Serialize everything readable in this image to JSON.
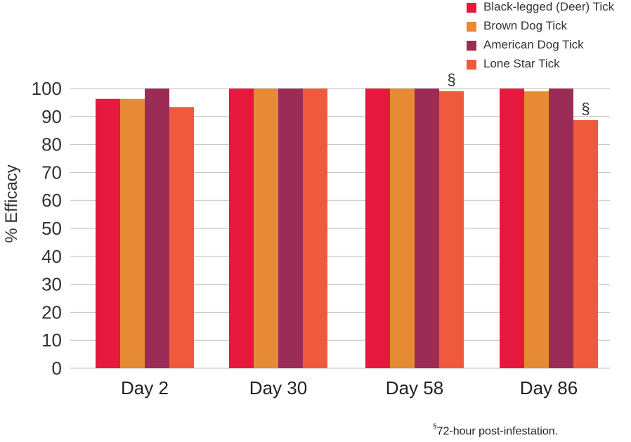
{
  "chart_data": {
    "type": "bar",
    "categories": [
      "Day 2",
      "Day 30",
      "Day 58",
      "Day 86"
    ],
    "series": [
      {
        "name": "Black-legged (Deer) Tick",
        "color": "#e5183e",
        "values": [
          96.3,
          100,
          100,
          100
        ]
      },
      {
        "name": "Brown Dog Tick",
        "color": "#e68a35",
        "values": [
          96.3,
          100,
          100,
          99
        ]
      },
      {
        "name": "American Dog Tick",
        "color": "#9b2c55",
        "values": [
          100,
          100,
          100,
          100
        ]
      },
      {
        "name": "Lone Star Tick",
        "color": "#f05a3c",
        "values": [
          93.4,
          100,
          99.1,
          88.7
        ]
      }
    ],
    "annotations": [
      {
        "category": "Day 58",
        "series": "Lone Star Tick",
        "text": "§"
      },
      {
        "category": "Day 86",
        "series": "Lone Star Tick",
        "text": "§"
      }
    ],
    "ylabel": "% Efficacy",
    "ylim": [
      0,
      100
    ],
    "yticks": [
      "0",
      "10",
      "20",
      "30",
      "40",
      "50",
      "60",
      "70",
      "80",
      "90",
      "100"
    ],
    "grid": true,
    "legend_position": "top-right"
  },
  "footnote": {
    "mark": "§",
    "text": "72-hour post-infestation."
  }
}
